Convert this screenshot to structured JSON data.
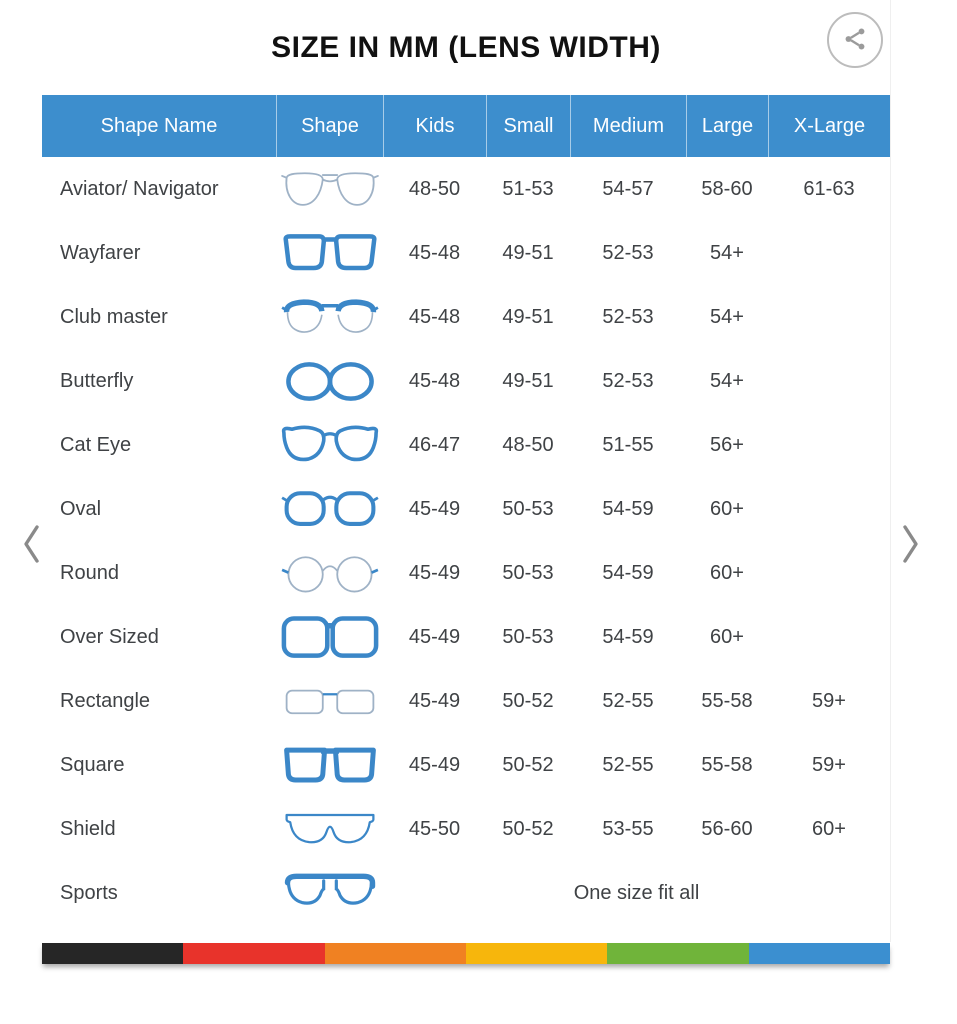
{
  "title": "SIZE IN MM (LENS WIDTH)",
  "share_button": {
    "icon": "share-icon"
  },
  "carousel": {
    "prev_icon": "chevron-left-icon",
    "next_icon": "chevron-right-icon"
  },
  "table": {
    "columns": [
      "Shape Name",
      "Shape",
      "Kids",
      "Small",
      "Medium",
      "Large",
      "X-Large"
    ],
    "rows": [
      {
        "name": "Aviator/ Navigator",
        "icon": "aviator-glasses-icon",
        "sizes": [
          "48-50",
          "51-53",
          "54-57",
          "58-60",
          "61-63"
        ]
      },
      {
        "name": "Wayfarer",
        "icon": "wayfarer-glasses-icon",
        "sizes": [
          "45-48",
          "49-51",
          "52-53",
          "54+"
        ]
      },
      {
        "name": "Club master",
        "icon": "clubmaster-glasses-icon",
        "sizes": [
          "45-48",
          "49-51",
          "52-53",
          "54+"
        ]
      },
      {
        "name": "Butterfly",
        "icon": "butterfly-glasses-icon",
        "sizes": [
          "45-48",
          "49-51",
          "52-53",
          "54+"
        ]
      },
      {
        "name": "Cat Eye",
        "icon": "cateye-glasses-icon",
        "sizes": [
          "46-47",
          "48-50",
          "51-55",
          "56+"
        ]
      },
      {
        "name": "Oval",
        "icon": "oval-glasses-icon",
        "sizes": [
          "45-49",
          "50-53",
          "54-59",
          "60+"
        ]
      },
      {
        "name": "Round",
        "icon": "round-glasses-icon",
        "sizes": [
          "45-49",
          "50-53",
          "54-59",
          "60+"
        ]
      },
      {
        "name": "Over Sized",
        "icon": "oversized-glasses-icon",
        "sizes": [
          "45-49",
          "50-53",
          "54-59",
          "60+"
        ]
      },
      {
        "name": "Rectangle",
        "icon": "rectangle-glasses-icon",
        "sizes": [
          "45-49",
          "50-52",
          "52-55",
          "55-58",
          "59+"
        ]
      },
      {
        "name": "Square",
        "icon": "square-glasses-icon",
        "sizes": [
          "45-49",
          "50-52",
          "52-55",
          "55-58",
          "59+"
        ]
      },
      {
        "name": "Shield",
        "icon": "shield-glasses-icon",
        "sizes": [
          "45-50",
          "50-52",
          "53-55",
          "56-60",
          "60+"
        ]
      },
      {
        "name": "Sports",
        "icon": "sports-glasses-icon",
        "span_text": "One size fit all"
      }
    ]
  },
  "footer_stripe": {
    "colors": [
      "#262626",
      "#e8332b",
      "#f08122",
      "#f7b60c",
      "#70b43a",
      "#3b8fd0"
    ]
  },
  "colors": {
    "header_bg": "#3d8ecd",
    "header_text": "#ffffff",
    "frame_blue": "#3b87c8",
    "thin_frame": "#9fb2c6",
    "body_text": "#3f4245",
    "title_text": "#111111",
    "chevron": "#8a8a8a",
    "share_gray": "#9b9b9b"
  }
}
